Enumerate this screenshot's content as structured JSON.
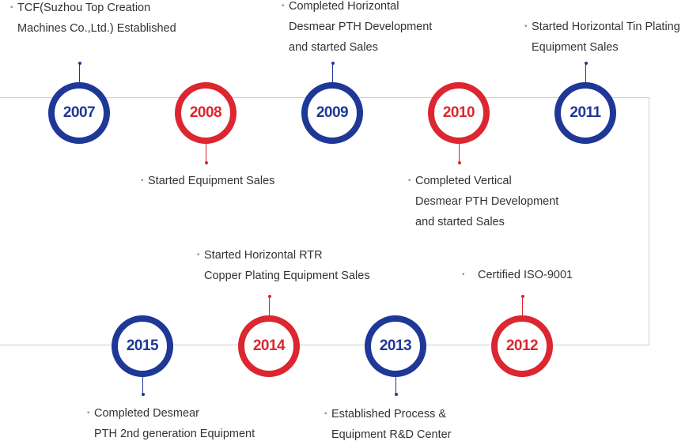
{
  "colors": {
    "blue": "#1f3797",
    "red": "#dc2630",
    "rail": "#cfcfcf",
    "text": "#333333"
  },
  "milestones": [
    {
      "year": "2007",
      "color": "blue",
      "lines": [
        "TCF(Suzhou Top Creation",
        "Machines Co.,Ltd.) Established"
      ]
    },
    {
      "year": "2008",
      "color": "red",
      "lines": [
        "Started Equipment Sales"
      ]
    },
    {
      "year": "2009",
      "color": "blue",
      "lines": [
        "Completed Horizontal",
        "Desmear PTH Development",
        "and started Sales"
      ]
    },
    {
      "year": "2010",
      "color": "red",
      "lines": [
        "Completed Vertical",
        "Desmear PTH Development",
        "and started Sales"
      ]
    },
    {
      "year": "2011",
      "color": "blue",
      "lines": [
        "Started Horizontal Tin Plating",
        "Equipment Sales"
      ]
    },
    {
      "year": "2012",
      "color": "red",
      "lines": [
        "Certified ISO-9001"
      ]
    },
    {
      "year": "2013",
      "color": "blue",
      "lines": [
        "Established Process &",
        "Equipment R&D Center"
      ]
    },
    {
      "year": "2014",
      "color": "red",
      "lines": [
        "Started Horizontal RTR",
        "Copper Plating Equipment Sales"
      ]
    },
    {
      "year": "2015",
      "color": "blue",
      "lines": [
        "Completed Desmear",
        "PTH 2nd generation Equipment"
      ]
    }
  ]
}
